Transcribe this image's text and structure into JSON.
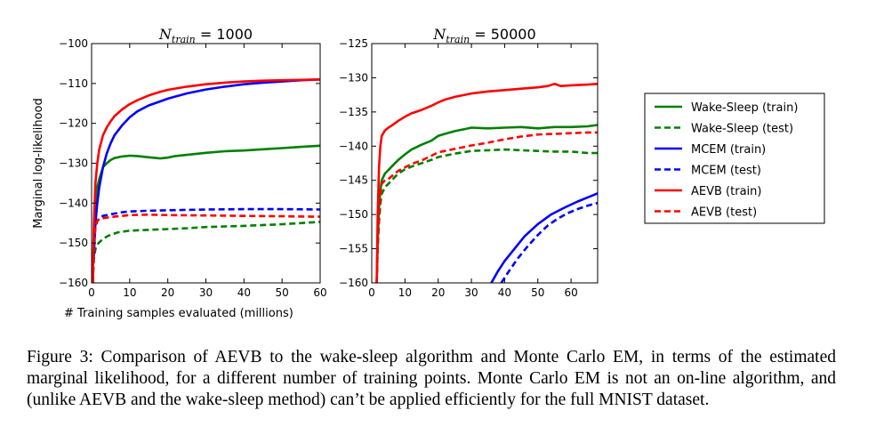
{
  "chart_data": [
    {
      "type": "line",
      "title_prefix": "N",
      "title_subscript": "train",
      "title_suffix": " = 1000",
      "xlabel": "# Training samples evaluated (millions)",
      "ylabel": "Marginal log-likelihood",
      "xlim": [
        0,
        60
      ],
      "ylim": [
        -160,
        -100
      ],
      "xticks": [
        0,
        10,
        20,
        30,
        40,
        50,
        60
      ],
      "yticks": [
        -100,
        -110,
        -120,
        -130,
        -140,
        -150,
        -160
      ],
      "series": [
        {
          "name": "Wake-Sleep (train)",
          "color": "#008000",
          "dash": false,
          "x": [
            0.3,
            0.6,
            1,
            1.5,
            2,
            3,
            4,
            5,
            6,
            8,
            10,
            12,
            15,
            18,
            20,
            22,
            25,
            30,
            35,
            40,
            45,
            50,
            55,
            60
          ],
          "y": [
            -160,
            -148,
            -140,
            -136,
            -134,
            -131,
            -130,
            -129.2,
            -128.7,
            -128.3,
            -128.1,
            -128.2,
            -128.5,
            -128.8,
            -128.6,
            -128.2,
            -127.9,
            -127.4,
            -127,
            -126.8,
            -126.5,
            -126.2,
            -125.9,
            -125.6
          ]
        },
        {
          "name": "Wake-Sleep (test)",
          "color": "#008000",
          "dash": true,
          "x": [
            0.3,
            0.6,
            1,
            1.5,
            2,
            3,
            4,
            5,
            7,
            10,
            15,
            20,
            25,
            30,
            40,
            50,
            60
          ],
          "y": [
            -160,
            -154,
            -151.5,
            -150.5,
            -149.8,
            -149,
            -148.4,
            -147.9,
            -147.3,
            -146.9,
            -146.7,
            -146.5,
            -146.3,
            -146,
            -145.7,
            -145.3,
            -144.7
          ]
        },
        {
          "name": "MCEM (train)",
          "color": "#0000ff",
          "dash": false,
          "x": [
            0.5,
            1,
            1.5,
            2,
            3,
            4,
            5,
            6,
            8,
            10,
            12,
            15,
            18,
            20,
            25,
            30,
            35,
            40,
            45,
            50,
            55,
            60
          ],
          "y": [
            -155,
            -145,
            -140,
            -136,
            -131,
            -127.5,
            -125,
            -123,
            -120.5,
            -118.5,
            -117,
            -115.5,
            -114.5,
            -113.8,
            -112.5,
            -111.5,
            -110.8,
            -110.2,
            -109.8,
            -109.5,
            -109.2,
            -109
          ]
        },
        {
          "name": "MCEM (test)",
          "color": "#0000ff",
          "dash": true,
          "x": [
            0.3,
            0.6,
            1,
            1.5,
            2,
            3,
            5,
            8,
            10,
            15,
            20,
            30,
            40,
            50,
            60
          ],
          "y": [
            -160,
            -150,
            -146,
            -144.5,
            -143.8,
            -143.2,
            -142.8,
            -142.3,
            -142.1,
            -141.9,
            -141.8,
            -141.6,
            -141.5,
            -141.5,
            -141.6
          ]
        },
        {
          "name": "AEVB (train)",
          "color": "#ff0000",
          "dash": false,
          "x": [
            0.3,
            0.6,
            1,
            1.5,
            2,
            3,
            4,
            5,
            6,
            8,
            10,
            12,
            15,
            18,
            20,
            25,
            30,
            35,
            40,
            45,
            50,
            55,
            60
          ],
          "y": [
            -160,
            -145,
            -135,
            -130,
            -126.5,
            -123,
            -121,
            -119.5,
            -118.2,
            -116.5,
            -115.2,
            -114.2,
            -113,
            -112.1,
            -111.6,
            -110.8,
            -110.2,
            -109.8,
            -109.5,
            -109.3,
            -109.2,
            -109.1,
            -109
          ]
        },
        {
          "name": "AEVB (test)",
          "color": "#ff0000",
          "dash": true,
          "x": [
            0.3,
            0.6,
            1,
            1.5,
            2,
            3,
            5,
            8,
            10,
            15,
            20,
            30,
            40,
            50,
            60
          ],
          "y": [
            -160,
            -150,
            -146,
            -144.5,
            -144,
            -143.8,
            -143.5,
            -143.2,
            -143,
            -142.9,
            -143,
            -143.1,
            -143.2,
            -143.3,
            -143.4
          ]
        }
      ]
    },
    {
      "type": "line",
      "title_prefix": "N",
      "title_subscript": "train",
      "title_suffix": " = 50000",
      "xlabel": "",
      "ylabel": "",
      "xlim": [
        0,
        68
      ],
      "ylim": [
        -160,
        -125
      ],
      "xticks": [
        0,
        10,
        20,
        30,
        40,
        50,
        60
      ],
      "yticks": [
        -125,
        -130,
        -135,
        -140,
        -145,
        -150,
        -155,
        -160
      ],
      "series": [
        {
          "name": "Wake-Sleep (train)",
          "color": "#008000",
          "dash": false,
          "x": [
            1.5,
            1.8,
            2.2,
            2.6,
            3,
            4,
            5,
            6,
            8,
            10,
            12,
            15,
            18,
            20,
            22,
            25,
            28,
            30,
            35,
            40,
            45,
            50,
            55,
            60,
            65,
            68
          ],
          "y": [
            -160,
            -154,
            -149,
            -146.5,
            -145,
            -144,
            -143.5,
            -143,
            -142,
            -141.2,
            -140.5,
            -139.8,
            -139.2,
            -138.5,
            -138.2,
            -137.8,
            -137.5,
            -137.3,
            -137.4,
            -137.3,
            -137.2,
            -137.4,
            -137.2,
            -137.2,
            -137.1,
            -136.9
          ]
        },
        {
          "name": "Wake-Sleep (test)",
          "color": "#008000",
          "dash": true,
          "x": [
            1.5,
            1.8,
            2.2,
            2.6,
            3,
            4,
            5,
            6,
            8,
            10,
            12,
            15,
            18,
            20,
            25,
            30,
            35,
            40,
            45,
            50,
            55,
            60,
            65,
            68
          ],
          "y": [
            -160,
            -155,
            -151,
            -148.5,
            -147,
            -146,
            -145.5,
            -145,
            -144,
            -143.4,
            -143,
            -142.5,
            -142,
            -141.6,
            -141.1,
            -140.7,
            -140.6,
            -140.5,
            -140.6,
            -140.7,
            -140.8,
            -140.8,
            -141,
            -141
          ]
        },
        {
          "name": "MCEM (train)",
          "color": "#0000ff",
          "dash": false,
          "x": [
            36,
            38,
            40,
            43,
            46,
            50,
            54,
            58,
            62,
            66,
            68
          ],
          "y": [
            -160,
            -158.3,
            -156.8,
            -155,
            -153.2,
            -151.4,
            -150,
            -149,
            -148.1,
            -147.3,
            -146.9
          ]
        },
        {
          "name": "MCEM (test)",
          "color": "#0000ff",
          "dash": true,
          "x": [
            39,
            41,
            44,
            47,
            50,
            53,
            56,
            59,
            62,
            65,
            68
          ],
          "y": [
            -160,
            -158.5,
            -156.4,
            -154.6,
            -153,
            -151.6,
            -150.6,
            -149.8,
            -149.2,
            -148.7,
            -148.3
          ]
        },
        {
          "name": "AEVB (train)",
          "color": "#ff0000",
          "dash": false,
          "x": [
            1.5,
            1.8,
            2.2,
            2.6,
            3,
            4,
            5,
            6,
            8,
            10,
            12,
            15,
            18,
            20,
            22,
            25,
            30,
            35,
            40,
            45,
            50,
            53,
            55,
            57,
            60,
            65,
            68
          ],
          "y": [
            -160,
            -150,
            -143,
            -140,
            -138.5,
            -137.7,
            -137.3,
            -137,
            -136.3,
            -135.7,
            -135.2,
            -134.7,
            -134.1,
            -133.6,
            -133.2,
            -132.8,
            -132.3,
            -132,
            -131.8,
            -131.6,
            -131.4,
            -131.2,
            -130.9,
            -131.2,
            -131.1,
            -131,
            -130.9
          ]
        },
        {
          "name": "AEVB (test)",
          "color": "#ff0000",
          "dash": true,
          "x": [
            1.5,
            1.8,
            2.2,
            2.6,
            3,
            4,
            5,
            6,
            8,
            10,
            12,
            15,
            18,
            20,
            25,
            30,
            35,
            40,
            45,
            50,
            55,
            60,
            65,
            68
          ],
          "y": [
            -160,
            -154,
            -149.5,
            -147,
            -145.5,
            -145,
            -144.8,
            -144.4,
            -143.6,
            -143.1,
            -142.6,
            -142.1,
            -141.4,
            -140.9,
            -140.4,
            -139.9,
            -139.5,
            -139,
            -138.6,
            -138.3,
            -138.2,
            -138.1,
            -138,
            -138
          ]
        }
      ]
    }
  ],
  "legend": [
    {
      "label": "Wake-Sleep (train)",
      "color": "#008000",
      "dash": false
    },
    {
      "label": "Wake-Sleep (test)",
      "color": "#008000",
      "dash": true
    },
    {
      "label": "MCEM (train)",
      "color": "#0000ff",
      "dash": false
    },
    {
      "label": "MCEM (test)",
      "color": "#0000ff",
      "dash": true
    },
    {
      "label": "AEVB (train)",
      "color": "#ff0000",
      "dash": false
    },
    {
      "label": "AEVB (test)",
      "color": "#ff0000",
      "dash": true
    }
  ],
  "caption": "Figure 3: Comparison of AEVB to the wake-sleep algorithm and Monte Carlo EM, in terms of the estimated marginal likelihood, for a different number of training points. Monte Carlo EM is not an on-line algorithm, and (unlike AEVB and the wake-sleep method) can’t be applied efficiently for the full MNIST dataset."
}
